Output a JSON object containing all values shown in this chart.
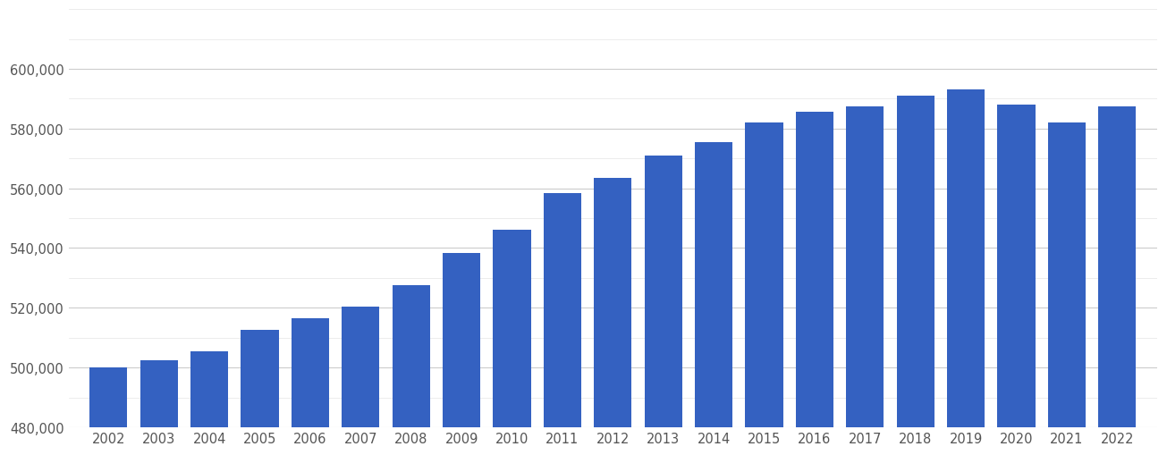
{
  "years": [
    2002,
    2003,
    2004,
    2005,
    2006,
    2007,
    2008,
    2009,
    2010,
    2011,
    2012,
    2013,
    2014,
    2015,
    2016,
    2017,
    2018,
    2019,
    2020,
    2021,
    2022
  ],
  "values": [
    500000,
    502500,
    505500,
    512500,
    516500,
    520500,
    527500,
    538500,
    546000,
    558500,
    563500,
    571000,
    575500,
    582000,
    585500,
    587500,
    591000,
    593000,
    588000,
    582000,
    587500
  ],
  "bar_color": "#3461C1",
  "background_color": "#ffffff",
  "major_grid_color": "#cccccc",
  "minor_grid_color": "#e5e5e5",
  "ylim": [
    480000,
    612000
  ],
  "ymin": 480000,
  "yticks_major": [
    480000,
    500000,
    520000,
    540000,
    560000,
    580000,
    600000
  ],
  "yticks_minor_step": 10000,
  "bar_width": 0.75,
  "figsize": [
    13.05,
    5.1
  ],
  "dpi": 100,
  "tick_label_color": "#555555",
  "tick_label_fontsize": 10.5
}
